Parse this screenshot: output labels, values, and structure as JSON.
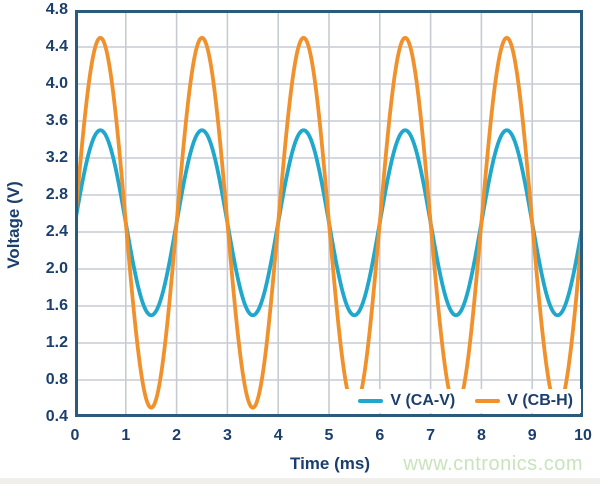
{
  "figure": {
    "colors": {
      "navy": "#1b3f6d",
      "border": "#2b5b7b",
      "grid": "#c7ccd3",
      "background": "#ffffff",
      "watermark_green": "#c9e3bd",
      "bottom_strip": "#f1efec"
    },
    "watermark": "www.cntronics.com"
  },
  "chart_data": {
    "type": "line",
    "title": "",
    "xlabel": "Time (ms)",
    "ylabel": "Voltage (V)",
    "xlim": [
      0,
      10
    ],
    "ylim": [
      0.4,
      4.8
    ],
    "x_tick_step": 1,
    "y_tick_step": 0.4,
    "x_tick_labels": [
      "0",
      "1",
      "2",
      "3",
      "4",
      "5",
      "6",
      "7",
      "8",
      "9",
      "10"
    ],
    "y_tick_labels": [
      "4.8",
      "4.4",
      "4.0",
      "3.6",
      "3.2",
      "2.8",
      "2.4",
      "2.0",
      "1.6",
      "1.2",
      "0.8",
      "0.4"
    ],
    "grid": true,
    "legend_position": "inside-bottom-right",
    "x": [
      0,
      0.5,
      1,
      1.5,
      2,
      2.5,
      3,
      3.5,
      4,
      4.5,
      5,
      5.5,
      6,
      6.5,
      7,
      7.5,
      8,
      8.5,
      9,
      9.5,
      10
    ],
    "series": [
      {
        "name": "V (CA-V)",
        "color": "#20a7cc",
        "waveform": "sine",
        "offset_v": 2.5,
        "amplitude_v": 1.0,
        "period_ms": 2.0,
        "phase_deg": 0,
        "peak_v": 3.5,
        "trough_v": 1.5,
        "values": [
          2.5,
          3.5,
          2.5,
          1.5,
          2.5,
          3.5,
          2.5,
          1.5,
          2.5,
          3.5,
          2.5,
          1.5,
          2.5,
          3.5,
          2.5,
          1.5,
          2.5,
          3.5,
          2.5,
          1.5,
          2.5
        ]
      },
      {
        "name": "V (CB-H)",
        "color": "#f0912c",
        "waveform": "sine",
        "offset_v": 2.5,
        "amplitude_v": 2.0,
        "period_ms": 2.0,
        "phase_deg": 0,
        "peak_v": 4.5,
        "trough_v": 0.5,
        "values": [
          2.5,
          4.5,
          2.5,
          0.5,
          2.5,
          4.5,
          2.5,
          0.5,
          2.5,
          4.5,
          2.5,
          0.5,
          2.5,
          4.5,
          2.5,
          0.5,
          2.5,
          4.5,
          2.5,
          0.5,
          2.5
        ]
      }
    ]
  }
}
